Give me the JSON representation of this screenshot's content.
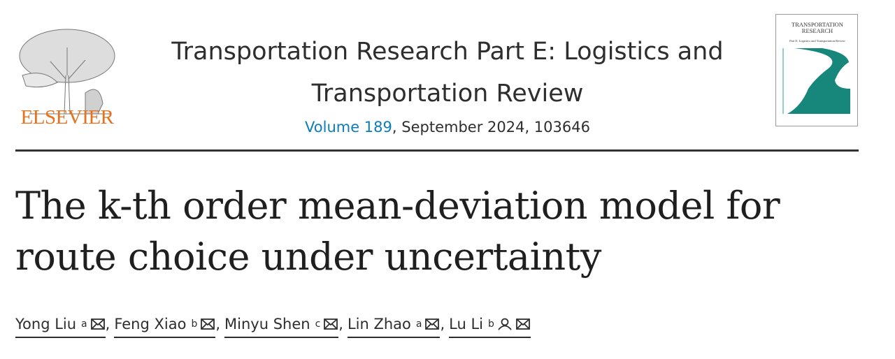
{
  "header": {
    "publisher": "ELSEVIER",
    "journal_title": "Transportation Research Part E: Logistics and Transportation Review",
    "volume_link": "Volume 189",
    "issue_info": ", September 2024, 103646",
    "cover": {
      "title": "TRANSPORTATION RESEARCH",
      "subtitle": "Part E: Logistics and Transportation Review"
    }
  },
  "article": {
    "title": "The k-th order mean-deviation model for route choice under uncertainty",
    "separator": ",",
    "authors": [
      {
        "name": "Yong Liu",
        "affiliation": "a"
      },
      {
        "name": "Feng Xiao",
        "affiliation": "b"
      },
      {
        "name": "Minyu Shen",
        "affiliation": "c"
      },
      {
        "name": "Lin Zhao",
        "affiliation": "a"
      },
      {
        "name": "Lu Li",
        "affiliation": "b",
        "corresponding": true
      }
    ]
  }
}
